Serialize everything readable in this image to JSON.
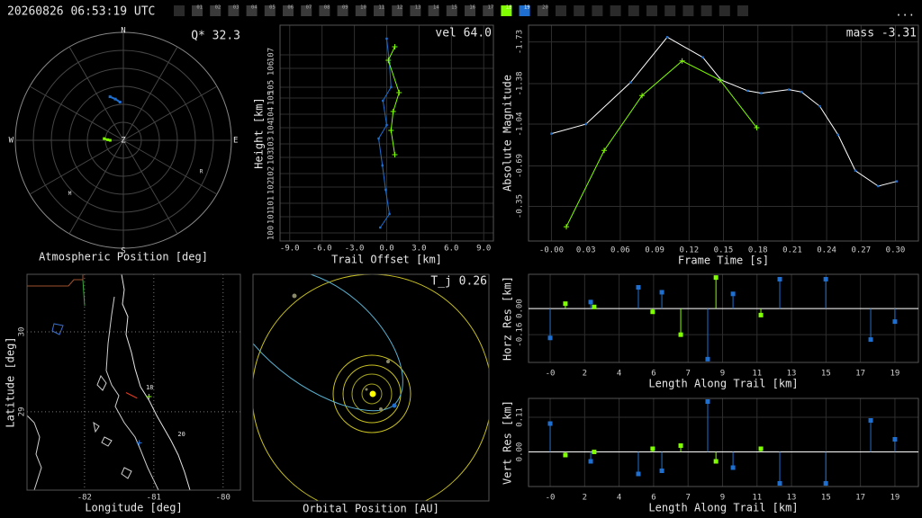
{
  "header": {
    "timestamp": "20260826 06:53:19 UTC",
    "more": "...",
    "frames": [
      {
        "label": "01",
        "color": "#3a3a3a"
      },
      {
        "label": "02",
        "color": "#3a3a3a"
      },
      {
        "label": "03",
        "color": "#3a3a3a"
      },
      {
        "label": "04",
        "color": "#3a3a3a"
      },
      {
        "label": "05",
        "color": "#3a3a3a"
      },
      {
        "label": "06",
        "color": "#3a3a3a"
      },
      {
        "label": "07",
        "color": "#3a3a3a"
      },
      {
        "label": "08",
        "color": "#3a3a3a"
      },
      {
        "label": "09",
        "color": "#3a3a3a"
      },
      {
        "label": "10",
        "color": "#3a3a3a"
      },
      {
        "label": "11",
        "color": "#3a3a3a"
      },
      {
        "label": "12",
        "color": "#3a3a3a"
      },
      {
        "label": "13",
        "color": "#3a3a3a"
      },
      {
        "label": "14",
        "color": "#3a3a3a"
      },
      {
        "label": "15",
        "color": "#3a3a3a"
      },
      {
        "label": "16",
        "color": "#3a3a3a"
      },
      {
        "label": "17",
        "color": "#3a3a3a"
      },
      {
        "label": "18",
        "color": "#80ff00"
      },
      {
        "label": "19",
        "color": "#1e6fd0"
      },
      {
        "label": "20",
        "color": "#3a3a3a"
      }
    ]
  },
  "chart_data": [
    {
      "type": "polar",
      "title": "Atmospheric Position [deg]",
      "annotation": "Q* 32.3",
      "compass": [
        "N",
        "E",
        "S",
        "W"
      ],
      "center_label": "Z",
      "rlim": [
        0,
        90
      ],
      "rticks": [
        15,
        30,
        45,
        60,
        75,
        90
      ],
      "series": [
        {
          "color": "#1e6fd0",
          "az": [
            343,
            349,
            355
          ],
          "zenith": [
            38,
            35,
            32
          ]
        },
        {
          "color": "#80ff00",
          "az": [
            275,
            272,
            270
          ],
          "zenith": [
            16,
            13,
            11
          ]
        }
      ],
      "stations": [
        {
          "text": "R",
          "az": 112,
          "zenith": 70
        },
        {
          "text": "M",
          "az": 225,
          "zenith": 63
        }
      ]
    },
    {
      "type": "line",
      "annotation": "vel 64.0",
      "x_label": "Trail Offset [km]",
      "y_label": "Height [km]",
      "grid": true,
      "xlim": [
        -9.9,
        9.9
      ],
      "xticks": [
        {
          "value": -9,
          "label": "-9.0"
        },
        {
          "value": -6,
          "label": "-6.0"
        },
        {
          "value": -3,
          "label": "-3.0"
        },
        {
          "value": 0,
          "label": "0.0"
        },
        {
          "value": 3,
          "label": "3.0"
        },
        {
          "value": 6,
          "label": "6.0"
        },
        {
          "value": 9,
          "label": "9.0"
        }
      ],
      "ylim": [
        99.7,
        107.7
      ],
      "yticks": [
        100,
        {
          "value": 100.6,
          "label": "101"
        },
        {
          "value": 101.1,
          "label": "101"
        },
        {
          "value": 101.7,
          "label": "102"
        },
        {
          "value": 102.2,
          "label": "102"
        },
        {
          "value": 102.8,
          "label": "103"
        },
        {
          "value": 103.3,
          "label": "103"
        },
        {
          "value": 103.9,
          "label": "104"
        },
        {
          "value": 104.4,
          "label": "104"
        },
        {
          "value": 105.0,
          "label": "105"
        },
        {
          "value": 105.4,
          "label": "105"
        },
        {
          "value": 106.1,
          "label": "106"
        },
        {
          "value": 106.6,
          "label": "107"
        }
      ],
      "series": [
        {
          "color": "#1e6fd0",
          "marker": "dot",
          "x": [
            0.0,
            0.25,
            0.4,
            -0.35,
            0.0,
            -0.75,
            -0.4,
            -0.1,
            0.25,
            -0.6
          ],
          "values": [
            107.2,
            106.3,
            105.4,
            104.9,
            104.0,
            103.5,
            102.5,
            101.6,
            100.7,
            100.2
          ]
        },
        {
          "color": "#80ff00",
          "marker": "plus",
          "x": [
            0.75,
            0.15,
            1.15,
            0.6,
            0.4,
            0.75
          ],
          "values": [
            106.9,
            106.4,
            105.2,
            104.5,
            103.8,
            102.9
          ]
        }
      ]
    },
    {
      "type": "line",
      "annotation": "mass -3.31",
      "x_label": "Frame Time [s]",
      "y_label": "Absolute Magnitude",
      "grid": true,
      "xlim": [
        -0.02,
        0.32
      ],
      "xticks": [
        {
          "value": 0,
          "label": "-0.00"
        },
        0.03,
        0.06,
        0.09,
        0.12,
        0.15,
        0.18,
        0.21,
        0.24,
        0.27,
        {
          "value": 0.3,
          "label": "0.30"
        }
      ],
      "ylim": [
        -0.06,
        -1.87
      ],
      "yticks": [
        -1.73,
        -1.38,
        -1.04,
        -0.69,
        -0.35
      ],
      "series": [
        {
          "color": "#ffffff",
          "marker": "dot",
          "marker_color": "#1e6fd0",
          "x": [
            0,
            0.03,
            0.069,
            0.101,
            0.132,
            0.148,
            0.171,
            0.183,
            0.207,
            0.218,
            0.234,
            0.25,
            0.265,
            0.285,
            0.301
          ],
          "values": [
            -0.96,
            -1.04,
            -1.39,
            -1.77,
            -1.6,
            -1.41,
            -1.32,
            -1.3,
            -1.33,
            -1.31,
            -1.19,
            -0.95,
            -0.65,
            -0.52,
            -0.56
          ]
        },
        {
          "color": "#80ff00",
          "marker": "plus",
          "x": [
            0.013,
            0.046,
            0.079,
            0.114,
            0.147,
            0.179
          ],
          "values": [
            -0.18,
            -0.82,
            -1.28,
            -1.57,
            -1.41,
            -1.01
          ]
        }
      ]
    },
    {
      "type": "stem",
      "x_label": "Length Along Trail [km]",
      "y_label": "Horz Res [km]",
      "grid": true,
      "xlim": [
        -1.28,
        19.98
      ],
      "xticks": [
        {
          "value": -0.1,
          "label": "-0"
        },
        {
          "value": 1.78,
          "label": "2"
        },
        {
          "value": 3.66,
          "label": "4"
        },
        {
          "value": 5.54,
          "label": "6"
        },
        {
          "value": 7.42,
          "label": "7"
        },
        {
          "value": 9.3,
          "label": "9"
        },
        {
          "value": 11.18,
          "label": "11"
        },
        {
          "value": 13.06,
          "label": "13"
        },
        {
          "value": 14.94,
          "label": "15"
        },
        {
          "value": 16.82,
          "label": "17"
        },
        {
          "value": 18.7,
          "label": "19"
        }
      ],
      "ylim": [
        -0.33,
        0.21
      ],
      "yticks": [
        {
          "value": 0,
          "label": "0.00"
        },
        -0.16
      ],
      "series": [
        {
          "color": "#1e6fd0",
          "x": [
            -0.1,
            2.11,
            4.71,
            5.99,
            8.49,
            9.87,
            12.42,
            14.93,
            17.38,
            18.7
          ],
          "values": [
            -0.18,
            0.04,
            0.13,
            0.1,
            -0.31,
            0.09,
            0.18,
            0.18,
            -0.19,
            -0.08
          ]
        },
        {
          "color": "#80ff00",
          "x": [
            0.73,
            2.3,
            5.49,
            7.02,
            8.94,
            11.39
          ],
          "values": [
            0.03,
            0.01,
            -0.02,
            -0.16,
            0.19,
            -0.04
          ]
        }
      ]
    },
    {
      "type": "stem",
      "x_label": "Length Along Trail [km]",
      "y_label": "Vert Res [km]",
      "grid": true,
      "xlim": [
        -1.28,
        19.98
      ],
      "xticks": [
        {
          "value": -0.1,
          "label": "-0"
        },
        {
          "value": 1.78,
          "label": "2"
        },
        {
          "value": 3.66,
          "label": "4"
        },
        {
          "value": 5.54,
          "label": "6"
        },
        {
          "value": 7.42,
          "label": "7"
        },
        {
          "value": 9.3,
          "label": "9"
        },
        {
          "value": 11.18,
          "label": "11"
        },
        {
          "value": 13.06,
          "label": "13"
        },
        {
          "value": 14.94,
          "label": "15"
        },
        {
          "value": 16.82,
          "label": "17"
        },
        {
          "value": 18.7,
          "label": "19"
        }
      ],
      "ylim": [
        -0.11,
        0.17
      ],
      "yticks": [
        0.11,
        {
          "value": 0,
          "label": "0.00"
        }
      ],
      "series": [
        {
          "color": "#1e6fd0",
          "x": [
            -0.1,
            2.11,
            4.71,
            5.99,
            8.49,
            9.87,
            12.42,
            14.93,
            17.38,
            18.7
          ],
          "values": [
            0.09,
            -0.03,
            -0.07,
            -0.06,
            0.16,
            -0.05,
            -0.1,
            -0.1,
            0.1,
            0.04
          ]
        },
        {
          "color": "#80ff00",
          "x": [
            0.73,
            2.3,
            5.49,
            7.02,
            8.94,
            11.39
          ],
          "values": [
            -0.01,
            0.0,
            0.01,
            0.02,
            -0.03,
            0.01
          ]
        }
      ]
    },
    {
      "type": "map",
      "x_label": "Longitude [deg]",
      "y_label": "Latitude [deg]",
      "grid": "dotted",
      "xlim": [
        -82.83,
        -79.75
      ],
      "xticks": [
        -82,
        -81,
        -80
      ],
      "ylim": [
        28.02,
        30.72
      ],
      "yticks": [
        29,
        30
      ],
      "series": [
        {
          "color": "#ff4020",
          "marker": "none",
          "x": [
            -81.4,
            -81.24
          ],
          "values": [
            29.24,
            29.17
          ]
        },
        {
          "color": "#80ff00",
          "marker": "plus",
          "x": [
            -81.07
          ],
          "values": [
            29.19
          ]
        },
        {
          "color": "#1e6fd0",
          "marker": "plus",
          "x": [
            -81.21
          ],
          "values": [
            28.61
          ]
        }
      ],
      "annotations": [
        {
          "text": "18",
          "x": -81.06,
          "y": 29.3
        },
        {
          "text": "20",
          "x": -80.6,
          "y": 28.72
        }
      ]
    },
    {
      "type": "orbit",
      "annotation": "T_j 0.26",
      "x_label": "Orbital Position [AU]"
    }
  ]
}
